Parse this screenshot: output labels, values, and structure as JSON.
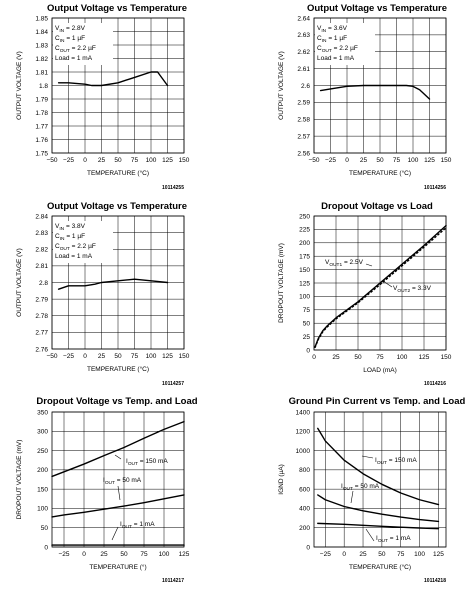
{
  "chart_data": [
    {
      "type": "line",
      "title": "Output Voltage vs Temperature",
      "xlabel": "TEMPERATURE (°C)",
      "ylabel": "OUTPUT VOLTAGE (V)",
      "xlim": [
        -50,
        150
      ],
      "ylim": [
        1.75,
        1.85
      ],
      "xticks": [
        -50,
        -25,
        0,
        25,
        50,
        75,
        100,
        125,
        150
      ],
      "xtick_labels": [
        "−50",
        "−25",
        "0",
        "25",
        "50",
        "75",
        "100",
        "125",
        "150"
      ],
      "yticks": [
        1.75,
        1.76,
        1.77,
        1.78,
        1.79,
        1.8,
        1.81,
        1.82,
        1.83,
        1.84,
        1.85
      ],
      "ytick_labels": [
        "1.75",
        "1.76",
        "1.77",
        "1.78",
        "1.79",
        "1.8",
        "1.81",
        "1.82",
        "1.83",
        "1.84",
        "1.85"
      ],
      "grid": true,
      "figure_id": "10114255",
      "annotations": [
        {
          "text": "V",
          "sub": "IN",
          "rest": " = 2.8V"
        },
        {
          "text": "C",
          "sub": "IN",
          "rest": " = 1 µF"
        },
        {
          "text": "C",
          "sub": "OUT",
          "rest": " = 2.2 µF"
        },
        {
          "text": "Load = 1 mA",
          "sub": "",
          "rest": ""
        }
      ],
      "series": [
        {
          "x": [
            -40,
            -25,
            0,
            10,
            25,
            50,
            75,
            100,
            110,
            125
          ],
          "y": [
            1.802,
            1.802,
            1.801,
            1.8,
            1.8,
            1.802,
            1.806,
            1.81,
            1.81,
            1.8
          ]
        }
      ]
    },
    {
      "type": "line",
      "title": "Output Voltage vs Temperature",
      "xlabel": "TEMPERATURE (°C)",
      "ylabel": "OUTPUT VOLTAGE (V)",
      "xlim": [
        -50,
        150
      ],
      "ylim": [
        2.56,
        2.64
      ],
      "xticks": [
        -50,
        -25,
        0,
        25,
        50,
        75,
        100,
        125,
        150
      ],
      "xtick_labels": [
        "−50",
        "−25",
        "0",
        "25",
        "50",
        "75",
        "100",
        "125",
        "150"
      ],
      "yticks": [
        2.56,
        2.57,
        2.58,
        2.59,
        2.6,
        2.61,
        2.62,
        2.63,
        2.64
      ],
      "ytick_labels": [
        "2.56",
        "2.57",
        "2.58",
        "2.59",
        "2.6",
        "2.61",
        "2.62",
        "2.63",
        "2.64"
      ],
      "grid": true,
      "figure_id": "10114256",
      "annotations": [
        {
          "text": "V",
          "sub": "IN",
          "rest": " = 3.6V"
        },
        {
          "text": "C",
          "sub": "IN",
          "rest": " = 1 µF"
        },
        {
          "text": "C",
          "sub": "OUT",
          "rest": " = 2.2 µF"
        },
        {
          "text": "Load = 1 mA",
          "sub": "",
          "rest": ""
        }
      ],
      "series": [
        {
          "x": [
            -40,
            -25,
            0,
            25,
            50,
            75,
            90,
            100,
            110,
            125
          ],
          "y": [
            2.597,
            2.598,
            2.5995,
            2.6,
            2.6,
            2.6,
            2.6,
            2.5995,
            2.5975,
            2.592
          ]
        }
      ]
    },
    {
      "type": "line",
      "title": "Output Voltage vs Temperature",
      "xlabel": "TEMPERATURE (°C)",
      "ylabel": "OUTPUT VOLTAGE (V)",
      "xlim": [
        -50,
        150
      ],
      "ylim": [
        2.76,
        2.84
      ],
      "xticks": [
        -50,
        -25,
        0,
        25,
        50,
        75,
        100,
        125,
        150
      ],
      "xtick_labels": [
        "−50",
        "−25",
        "0",
        "25",
        "50",
        "75",
        "100",
        "125",
        "150"
      ],
      "yticks": [
        2.76,
        2.77,
        2.78,
        2.79,
        2.8,
        2.81,
        2.82,
        2.83,
        2.84
      ],
      "ytick_labels": [
        "2.76",
        "2.77",
        "2.78",
        "2.79",
        "2.8",
        "2.81",
        "2.82",
        "2.83",
        "2.84"
      ],
      "grid": true,
      "figure_id": "10114257",
      "annotations": [
        {
          "text": "V",
          "sub": "IN",
          "rest": " = 3.8V"
        },
        {
          "text": "C",
          "sub": "IN",
          "rest": " = 1 µF"
        },
        {
          "text": "C",
          "sub": "OUT",
          "rest": " = 2.2 µF"
        },
        {
          "text": "Load = 1 mA",
          "sub": "",
          "rest": ""
        }
      ],
      "series": [
        {
          "x": [
            -40,
            -25,
            0,
            15,
            25,
            50,
            75,
            100,
            125
          ],
          "y": [
            2.796,
            2.798,
            2.798,
            2.799,
            2.8,
            2.801,
            2.802,
            2.801,
            2.8
          ]
        }
      ]
    },
    {
      "type": "line",
      "title": "Dropout Voltage vs Load",
      "xlabel": "LOAD (mA)",
      "ylabel": "DROPOUT VOLTAGE (mV)",
      "xlim": [
        0,
        150
      ],
      "ylim": [
        0,
        250
      ],
      "xticks": [
        0,
        25,
        50,
        75,
        100,
        125,
        150
      ],
      "xtick_labels": [
        "0",
        "25",
        "50",
        "75",
        "100",
        "125",
        "150"
      ],
      "yticks": [
        0,
        25,
        50,
        75,
        100,
        125,
        150,
        175,
        200,
        225,
        250
      ],
      "ytick_labels": [
        "0",
        "25",
        "50",
        "75",
        "100",
        "125",
        "150",
        "175",
        "200",
        "225",
        "250"
      ],
      "grid": true,
      "figure_id": "10114216",
      "labels": [
        {
          "pre": "V",
          "sub": "OUT1",
          "rest": " = 2.5V"
        },
        {
          "pre": "V",
          "sub": "OUT2",
          "rest": " = 3.3V"
        }
      ],
      "series": [
        {
          "x": [
            1,
            5,
            10,
            15,
            25,
            50,
            75,
            100,
            125,
            150
          ],
          "y": [
            5,
            22,
            36,
            45,
            60,
            90,
            125,
            160,
            195,
            232
          ]
        },
        {
          "x": [
            1,
            5,
            10,
            15,
            25,
            50,
            75,
            100,
            125,
            150
          ],
          "y": [
            4,
            20,
            34,
            43,
            58,
            88,
            122,
            157,
            192,
            228
          ]
        }
      ]
    },
    {
      "type": "line",
      "title": "Dropout Voltage vs Temp. and Load",
      "xlabel": "TEMPERATURE (°)",
      "ylabel": "DROPOUT VOLTAGE (mV)",
      "xlim": [
        -40,
        125
      ],
      "ylim": [
        0,
        350
      ],
      "xticks": [
        -25,
        0,
        25,
        50,
        75,
        100,
        125
      ],
      "xtick_labels": [
        "−25",
        "0",
        "25",
        "50",
        "75",
        "100",
        "125"
      ],
      "yticks": [
        0,
        50,
        100,
        150,
        200,
        250,
        300,
        350
      ],
      "ytick_labels": [
        "0",
        "50",
        "100",
        "150",
        "200",
        "250",
        "300",
        "350"
      ],
      "grid": true,
      "figure_id": "10114217",
      "labels": [
        {
          "pre": "I",
          "sub": "OUT",
          "rest": " = 150 mA"
        },
        {
          "pre": "I",
          "sub": "OUT",
          "rest": " = 50 mA"
        },
        {
          "pre": "I",
          "sub": "OUT",
          "rest": " = 1 mA"
        }
      ],
      "series": [
        {
          "x": [
            -40,
            -25,
            0,
            25,
            50,
            75,
            100,
            125
          ],
          "y": [
            183,
            195,
            215,
            237,
            258,
            282,
            305,
            325
          ]
        },
        {
          "x": [
            -40,
            -25,
            0,
            25,
            50,
            75,
            100,
            125
          ],
          "y": [
            78,
            83,
            90,
            98,
            106,
            115,
            125,
            135
          ]
        },
        {
          "x": [
            -40,
            0,
            50,
            125
          ],
          "y": [
            5,
            5,
            5,
            5
          ]
        }
      ]
    },
    {
      "type": "line",
      "title": "Ground Pin Current vs Temp. and Load",
      "xlabel": "TEMPERATURE (°C)",
      "ylabel": "IGND (µA)",
      "xlim": [
        -40,
        135
      ],
      "ylim": [
        0,
        1400
      ],
      "xticks": [
        -25,
        0,
        25,
        50,
        75,
        100,
        125
      ],
      "xtick_labels": [
        "−25",
        "0",
        "25",
        "50",
        "75",
        "100",
        "125"
      ],
      "yticks": [
        0,
        200,
        400,
        600,
        800,
        1000,
        1200,
        1400
      ],
      "ytick_labels": [
        "0",
        "200",
        "400",
        "600",
        "800",
        "1000",
        "1200",
        "1400"
      ],
      "grid": true,
      "figure_id": "10114218",
      "labels": [
        {
          "pre": "I",
          "sub": "OUT",
          "rest": " = 150 mA"
        },
        {
          "pre": "I",
          "sub": "OUT",
          "rest": " = 50 mA"
        },
        {
          "pre": "I",
          "sub": "OUT",
          "rest": " = 1 mA"
        }
      ],
      "series": [
        {
          "x": [
            -35,
            -25,
            0,
            25,
            50,
            75,
            100,
            125
          ],
          "y": [
            1230,
            1100,
            900,
            760,
            650,
            560,
            490,
            440
          ]
        },
        {
          "x": [
            -35,
            -25,
            0,
            25,
            50,
            75,
            100,
            125
          ],
          "y": [
            540,
            490,
            420,
            375,
            340,
            310,
            285,
            265
          ]
        },
        {
          "x": [
            -35,
            0,
            25,
            50,
            75,
            100,
            125
          ],
          "y": [
            245,
            235,
            225,
            215,
            205,
            197,
            190
          ]
        }
      ]
    }
  ]
}
